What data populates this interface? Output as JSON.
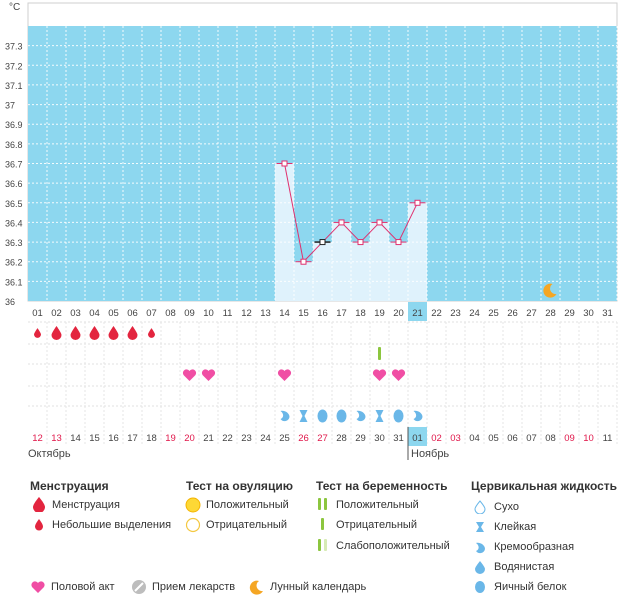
{
  "colors": {
    "chart_bg": "#8dd7ef",
    "bar_fill": "#dff2fc",
    "line": "#e0306e",
    "weekend": "#e0174a",
    "today_bg": "#8dd7ef",
    "moon": "#f5a623",
    "drop": "#e3253f",
    "heart": "#f04ea4",
    "preg_pos": "#8cc63f",
    "mucus": "#6ab7e8"
  },
  "chart_data": {
    "type": "line",
    "unit_label": "°C",
    "ylim": [
      36,
      37.4
    ],
    "y_ticks": [
      "37.3",
      "37.2",
      "37.1",
      "37",
      "36.9",
      "36.8",
      "36.7",
      "36.6",
      "36.5",
      "36.4",
      "36.3",
      "36.2",
      "36.1",
      "36"
    ],
    "y_tick_values": [
      37.3,
      37.2,
      37.1,
      37,
      36.9,
      36.8,
      36.7,
      36.6,
      36.5,
      36.4,
      36.3,
      36.2,
      36.1,
      36
    ],
    "cycle_days": [
      "01",
      "02",
      "03",
      "04",
      "05",
      "06",
      "07",
      "08",
      "09",
      "10",
      "11",
      "12",
      "13",
      "14",
      "15",
      "16",
      "17",
      "18",
      "19",
      "20",
      "21",
      "22",
      "23",
      "24",
      "25",
      "26",
      "27",
      "28",
      "29",
      "30",
      "31"
    ],
    "today_index": 20,
    "temperatures": [
      {
        "day": 14,
        "value": 36.7
      },
      {
        "day": 15,
        "value": 36.2
      },
      {
        "day": 16,
        "value": 36.3,
        "marker": "alt"
      },
      {
        "day": 17,
        "value": 36.4
      },
      {
        "day": 18,
        "value": 36.3
      },
      {
        "day": 19,
        "value": 36.4
      },
      {
        "day": 20,
        "value": 36.3
      },
      {
        "day": 21,
        "value": 36.5
      }
    ],
    "moon_day": 28
  },
  "calendar": {
    "dates": [
      "12",
      "13",
      "14",
      "15",
      "16",
      "17",
      "18",
      "19",
      "20",
      "21",
      "22",
      "23",
      "24",
      "25",
      "26",
      "27",
      "28",
      "29",
      "30",
      "31",
      "01",
      "02",
      "03",
      "04",
      "05",
      "06",
      "07",
      "08",
      "09",
      "10",
      "11"
    ],
    "weekend_indices": [
      0,
      1,
      7,
      8,
      14,
      15,
      21,
      22,
      28,
      29
    ],
    "today_index": 20,
    "month_start": "Октябрь",
    "month_next": "Ноябрь"
  },
  "rows": {
    "menstruation": [
      {
        "day": 1,
        "type": "small"
      },
      {
        "day": 2,
        "type": "large"
      },
      {
        "day": 3,
        "type": "large"
      },
      {
        "day": 4,
        "type": "large"
      },
      {
        "day": 5,
        "type": "large"
      },
      {
        "day": 6,
        "type": "large"
      },
      {
        "day": 7,
        "type": "small"
      }
    ],
    "pregnancy": [
      {
        "day": 19,
        "type": "positive"
      }
    ],
    "intercourse": [
      9,
      10,
      14,
      19,
      20
    ],
    "mucus": [
      {
        "day": 14,
        "type": "creamy"
      },
      {
        "day": 15,
        "type": "sticky"
      },
      {
        "day": 16,
        "type": "eggwhite"
      },
      {
        "day": 17,
        "type": "eggwhite"
      },
      {
        "day": 18,
        "type": "creamy"
      },
      {
        "day": 19,
        "type": "sticky"
      },
      {
        "day": 20,
        "type": "eggwhite"
      },
      {
        "day": 21,
        "type": "creamy"
      }
    ]
  },
  "legend": {
    "menstruation": {
      "title": "Менструация",
      "items": [
        "Менструация",
        "Небольшие выделения"
      ]
    },
    "ovulation": {
      "title": "Тест на овуляцию",
      "items": [
        "Положительный",
        "Отрицательный"
      ]
    },
    "pregnancy": {
      "title": "Тест на беременность",
      "items": [
        "Положительный",
        "Отрицательный",
        "Слабоположительный"
      ]
    },
    "mucus": {
      "title": "Цервикальная жидкость",
      "items": [
        "Сухо",
        "Клейкая",
        "Кремообразная",
        "Водянистая",
        "Яичный белок"
      ]
    },
    "bottom": {
      "intercourse": "Половой акт",
      "medication": "Прием лекарств",
      "moon": "Лунный календарь"
    }
  }
}
